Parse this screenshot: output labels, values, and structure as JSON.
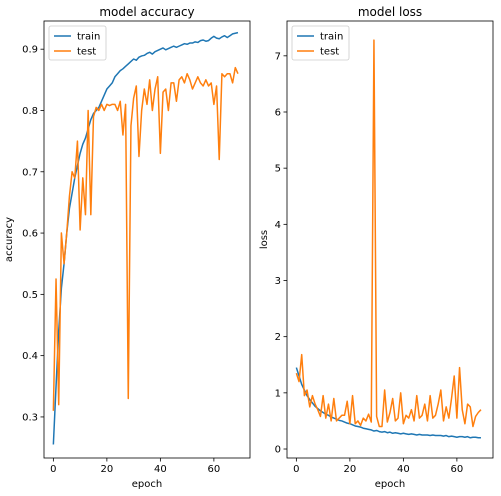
{
  "chart_data": [
    {
      "type": "line",
      "title": "model accuracy",
      "xlabel": "epoch",
      "ylabel": "accuracy",
      "xlim": [
        -3.5,
        73.5
      ],
      "ylim": [
        0.233,
        0.946
      ],
      "xticks": [
        0,
        20,
        40,
        60
      ],
      "yticks": [
        0.3,
        0.4,
        0.5,
        0.6,
        0.7,
        0.8,
        0.9
      ],
      "legend": "top-left",
      "grid": false,
      "series": [
        {
          "name": "train",
          "color": "#1f77b4",
          "x": [
            0,
            1,
            2,
            3,
            4,
            5,
            6,
            7,
            8,
            9,
            10,
            11,
            12,
            13,
            14,
            15,
            16,
            17,
            18,
            19,
            20,
            21,
            22,
            23,
            24,
            25,
            26,
            27,
            28,
            29,
            30,
            31,
            32,
            33,
            34,
            35,
            36,
            37,
            38,
            39,
            40,
            41,
            42,
            43,
            44,
            45,
            46,
            47,
            48,
            49,
            50,
            51,
            52,
            53,
            54,
            55,
            56,
            57,
            58,
            59,
            60,
            61,
            62,
            63,
            64,
            65,
            66,
            67,
            68,
            69
          ],
          "values": [
            0.255,
            0.35,
            0.44,
            0.51,
            0.55,
            0.6,
            0.64,
            0.665,
            0.69,
            0.71,
            0.73,
            0.745,
            0.755,
            0.77,
            0.785,
            0.795,
            0.8,
            0.805,
            0.815,
            0.825,
            0.835,
            0.84,
            0.845,
            0.855,
            0.86,
            0.865,
            0.868,
            0.872,
            0.876,
            0.88,
            0.884,
            0.882,
            0.887,
            0.889,
            0.89,
            0.893,
            0.895,
            0.892,
            0.896,
            0.898,
            0.9,
            0.902,
            0.899,
            0.901,
            0.903,
            0.905,
            0.903,
            0.905,
            0.907,
            0.909,
            0.908,
            0.91,
            0.91,
            0.912,
            0.911,
            0.914,
            0.915,
            0.913,
            0.914,
            0.918,
            0.921,
            0.918,
            0.917,
            0.92,
            0.922,
            0.919,
            0.922,
            0.925,
            0.926,
            0.927
          ]
        },
        {
          "name": "test",
          "color": "#ff7f0e",
          "x": [
            0,
            1,
            2,
            3,
            4,
            5,
            6,
            7,
            8,
            9,
            10,
            11,
            12,
            13,
            14,
            15,
            16,
            17,
            18,
            19,
            20,
            21,
            22,
            23,
            24,
            25,
            26,
            27,
            28,
            29,
            30,
            31,
            32,
            33,
            34,
            35,
            36,
            37,
            38,
            39,
            40,
            41,
            42,
            43,
            44,
            45,
            46,
            47,
            48,
            49,
            50,
            51,
            52,
            53,
            54,
            55,
            56,
            57,
            58,
            59,
            60,
            61,
            62,
            63,
            64,
            65,
            66,
            67,
            68,
            69
          ],
          "values": [
            0.31,
            0.525,
            0.32,
            0.6,
            0.55,
            0.6,
            0.66,
            0.7,
            0.69,
            0.75,
            0.605,
            0.69,
            0.63,
            0.8,
            0.63,
            0.79,
            0.805,
            0.8,
            0.81,
            0.8,
            0.81,
            0.808,
            0.81,
            0.81,
            0.8,
            0.815,
            0.76,
            0.81,
            0.33,
            0.775,
            0.82,
            0.84,
            0.725,
            0.8,
            0.835,
            0.81,
            0.85,
            0.8,
            0.835,
            0.855,
            0.73,
            0.83,
            0.835,
            0.8,
            0.845,
            0.845,
            0.815,
            0.85,
            0.855,
            0.845,
            0.86,
            0.85,
            0.835,
            0.845,
            0.855,
            0.845,
            0.84,
            0.85,
            0.84,
            0.845,
            0.81,
            0.84,
            0.72,
            0.86,
            0.855,
            0.86,
            0.86,
            0.845,
            0.87,
            0.86
          ]
        }
      ]
    },
    {
      "type": "line",
      "title": "model loss",
      "xlabel": "epoch",
      "ylabel": "loss",
      "xlim": [
        -3.5,
        73.5
      ],
      "ylim": [
        -0.16,
        7.62
      ],
      "xticks": [
        0,
        20,
        40,
        60
      ],
      "yticks": [
        0,
        1,
        2,
        3,
        4,
        5,
        6,
        7
      ],
      "legend": "top-left",
      "grid": false,
      "series": [
        {
          "name": "train",
          "color": "#1f77b4",
          "x": [
            0,
            1,
            2,
            3,
            4,
            5,
            6,
            7,
            8,
            9,
            10,
            11,
            12,
            13,
            14,
            15,
            16,
            17,
            18,
            19,
            20,
            21,
            22,
            23,
            24,
            25,
            26,
            27,
            28,
            29,
            30,
            31,
            32,
            33,
            34,
            35,
            36,
            37,
            38,
            39,
            40,
            41,
            42,
            43,
            44,
            45,
            46,
            47,
            48,
            49,
            50,
            51,
            52,
            53,
            54,
            55,
            56,
            57,
            58,
            59,
            60,
            61,
            62,
            63,
            64,
            65,
            66,
            67,
            68,
            69
          ],
          "values": [
            1.45,
            1.3,
            1.15,
            1.05,
            0.95,
            0.88,
            0.82,
            0.76,
            0.72,
            0.68,
            0.65,
            0.62,
            0.6,
            0.57,
            0.55,
            0.53,
            0.51,
            0.5,
            0.48,
            0.46,
            0.45,
            0.43,
            0.41,
            0.4,
            0.39,
            0.37,
            0.36,
            0.35,
            0.34,
            0.32,
            0.33,
            0.31,
            0.3,
            0.31,
            0.29,
            0.3,
            0.28,
            0.29,
            0.28,
            0.27,
            0.28,
            0.27,
            0.26,
            0.27,
            0.26,
            0.25,
            0.26,
            0.25,
            0.25,
            0.25,
            0.24,
            0.25,
            0.24,
            0.24,
            0.24,
            0.23,
            0.24,
            0.22,
            0.23,
            0.22,
            0.21,
            0.22,
            0.22,
            0.21,
            0.22,
            0.2,
            0.21,
            0.21,
            0.2,
            0.2
          ]
        },
        {
          "name": "test",
          "color": "#ff7f0e",
          "x": [
            0,
            1,
            2,
            3,
            4,
            5,
            6,
            7,
            8,
            9,
            10,
            11,
            12,
            13,
            14,
            15,
            16,
            17,
            18,
            19,
            20,
            21,
            22,
            23,
            24,
            25,
            26,
            27,
            28,
            29,
            30,
            31,
            32,
            33,
            34,
            35,
            36,
            37,
            38,
            39,
            40,
            41,
            42,
            43,
            44,
            45,
            46,
            47,
            48,
            49,
            50,
            51,
            52,
            53,
            54,
            55,
            56,
            57,
            58,
            59,
            60,
            61,
            62,
            63,
            64,
            65,
            66,
            67,
            68,
            69
          ],
          "values": [
            1.35,
            1.2,
            1.68,
            0.95,
            1.05,
            0.75,
            0.95,
            0.8,
            0.7,
            0.58,
            0.95,
            0.55,
            0.8,
            0.5,
            0.9,
            0.5,
            0.55,
            0.6,
            0.6,
            0.85,
            0.45,
            0.95,
            0.45,
            0.5,
            0.42,
            0.55,
            0.5,
            0.62,
            0.48,
            7.28,
            0.58,
            0.4,
            0.4,
            1.05,
            0.48,
            0.65,
            0.9,
            0.5,
            0.55,
            1.0,
            0.45,
            0.6,
            0.55,
            0.7,
            0.5,
            0.95,
            0.55,
            0.6,
            0.8,
            0.5,
            0.95,
            0.55,
            0.6,
            0.8,
            1.05,
            0.5,
            0.75,
            0.55,
            0.9,
            1.3,
            0.55,
            1.45,
            0.7,
            0.45,
            0.8,
            0.75,
            0.4,
            0.58,
            0.65,
            0.7
          ]
        }
      ]
    }
  ]
}
